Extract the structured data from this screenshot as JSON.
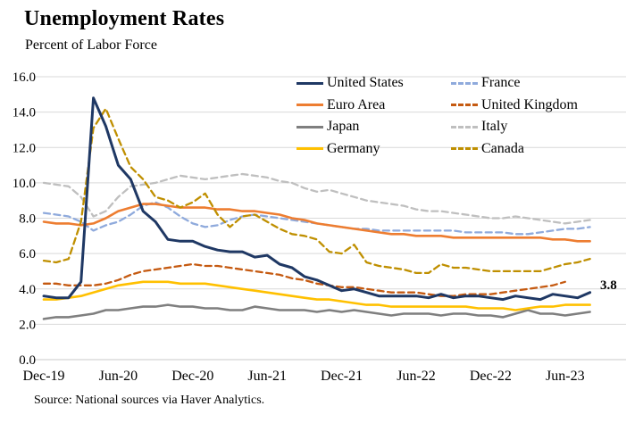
{
  "chart_data": {
    "type": "line",
    "title": "Unemployment Rates",
    "subtitle": "Percent of Labor Force",
    "source": "Source: National sources via Haver Analytics.",
    "ylim": [
      0,
      16
    ],
    "grid": "horizontal",
    "y_tick_labels": [
      "0.0",
      "2.0",
      "4.0",
      "6.0",
      "8.0",
      "10.0",
      "12.0",
      "14.0",
      "16.0"
    ],
    "x_months": [
      "Dec-19",
      "Jan-20",
      "Feb-20",
      "Mar-20",
      "Apr-20",
      "May-20",
      "Jun-20",
      "Jul-20",
      "Aug-20",
      "Sep-20",
      "Oct-20",
      "Nov-20",
      "Dec-20",
      "Jan-21",
      "Feb-21",
      "Mar-21",
      "Apr-21",
      "May-21",
      "Jun-21",
      "Jul-21",
      "Aug-21",
      "Sep-21",
      "Oct-21",
      "Nov-21",
      "Dec-21",
      "Jan-22",
      "Feb-22",
      "Mar-22",
      "Apr-22",
      "May-22",
      "Jun-22",
      "Jul-22",
      "Aug-22",
      "Sep-22",
      "Oct-22",
      "Nov-22",
      "Dec-22",
      "Jan-23",
      "Feb-23",
      "Mar-23",
      "Apr-23",
      "May-23",
      "Jun-23",
      "Jul-23",
      "Aug-23"
    ],
    "x_ticks": {
      "indices": [
        0,
        6,
        12,
        18,
        24,
        30,
        36,
        42
      ],
      "labels": [
        "Dec-19",
        "Jun-20",
        "Dec-20",
        "Jun-21",
        "Dec-21",
        "Jun-22",
        "Dec-22",
        "Jun-23"
      ]
    },
    "legend": {
      "position": "top-inside",
      "columns": [
        [
          "United States",
          "Euro Area",
          "Japan",
          "Germany"
        ],
        [
          "France",
          "United Kingdom",
          "Italy",
          "Canada"
        ]
      ]
    },
    "annotation": {
      "text": "3.8",
      "series": "United States",
      "point": "Aug-23"
    },
    "series": [
      {
        "name": "United States",
        "color": "#1F3864",
        "dash": false,
        "width": 3,
        "values": [
          3.6,
          3.5,
          3.5,
          4.4,
          14.8,
          13.2,
          11.0,
          10.2,
          8.4,
          7.8,
          6.8,
          6.7,
          6.7,
          6.4,
          6.2,
          6.1,
          6.1,
          5.8,
          5.9,
          5.4,
          5.2,
          4.7,
          4.5,
          4.2,
          3.9,
          4.0,
          3.8,
          3.6,
          3.6,
          3.6,
          3.6,
          3.5,
          3.7,
          3.5,
          3.6,
          3.6,
          3.5,
          3.4,
          3.6,
          3.5,
          3.4,
          3.7,
          3.6,
          3.5,
          3.8
        ]
      },
      {
        "name": "Euro Area",
        "color": "#ED7D31",
        "dash": false,
        "width": 2.6,
        "values": [
          7.8,
          7.7,
          7.7,
          7.6,
          7.7,
          8.0,
          8.4,
          8.6,
          8.8,
          8.8,
          8.7,
          8.6,
          8.6,
          8.6,
          8.5,
          8.5,
          8.4,
          8.4,
          8.3,
          8.2,
          8.0,
          7.9,
          7.7,
          7.6,
          7.5,
          7.4,
          7.3,
          7.2,
          7.1,
          7.1,
          7.0,
          7.0,
          7.0,
          6.9,
          6.9,
          6.9,
          6.9,
          6.9,
          6.9,
          6.9,
          6.9,
          6.8,
          6.8,
          6.7,
          6.7
        ]
      },
      {
        "name": "Japan",
        "color": "#7F7F7F",
        "dash": false,
        "width": 2.6,
        "values": [
          2.3,
          2.4,
          2.4,
          2.5,
          2.6,
          2.8,
          2.8,
          2.9,
          3.0,
          3.0,
          3.1,
          3.0,
          3.0,
          2.9,
          2.9,
          2.8,
          2.8,
          3.0,
          2.9,
          2.8,
          2.8,
          2.8,
          2.7,
          2.8,
          2.7,
          2.8,
          2.7,
          2.6,
          2.5,
          2.6,
          2.6,
          2.6,
          2.5,
          2.6,
          2.6,
          2.5,
          2.5,
          2.4,
          2.6,
          2.8,
          2.6,
          2.6,
          2.5,
          2.6,
          2.7
        ]
      },
      {
        "name": "Germany",
        "color": "#FFC000",
        "dash": false,
        "width": 2.6,
        "values": [
          3.4,
          3.4,
          3.5,
          3.6,
          3.8,
          4.0,
          4.2,
          4.3,
          4.4,
          4.4,
          4.4,
          4.3,
          4.3,
          4.3,
          4.2,
          4.1,
          4.0,
          3.9,
          3.8,
          3.7,
          3.6,
          3.5,
          3.4,
          3.4,
          3.3,
          3.2,
          3.1,
          3.1,
          3.0,
          3.0,
          3.0,
          3.0,
          3.0,
          3.0,
          3.0,
          2.9,
          2.9,
          2.9,
          2.8,
          2.9,
          3.0,
          3.0,
          3.1,
          3.1,
          3.1
        ]
      },
      {
        "name": "France",
        "color": "#8FAADC",
        "dash": true,
        "width": 2.3,
        "values": [
          8.3,
          8.2,
          8.1,
          7.8,
          7.3,
          7.6,
          7.8,
          8.2,
          8.7,
          8.9,
          8.6,
          8.1,
          7.7,
          7.5,
          7.6,
          7.9,
          8.1,
          8.2,
          8.1,
          8.0,
          7.9,
          7.8,
          7.7,
          7.6,
          7.5,
          7.4,
          7.4,
          7.3,
          7.3,
          7.3,
          7.3,
          7.3,
          7.3,
          7.3,
          7.2,
          7.2,
          7.2,
          7.2,
          7.1,
          7.1,
          7.2,
          7.3,
          7.4,
          7.4,
          7.5
        ]
      },
      {
        "name": "United Kingdom",
        "color": "#C55A11",
        "dash": true,
        "width": 2.3,
        "values": [
          4.3,
          4.3,
          4.2,
          4.2,
          4.2,
          4.3,
          4.5,
          4.8,
          5.0,
          5.1,
          5.2,
          5.3,
          5.4,
          5.3,
          5.3,
          5.2,
          5.1,
          5.0,
          4.9,
          4.8,
          4.6,
          4.5,
          4.3,
          4.2,
          4.1,
          4.1,
          4.0,
          3.9,
          3.8,
          3.8,
          3.8,
          3.7,
          3.6,
          3.6,
          3.7,
          3.7,
          3.7,
          3.8,
          3.9,
          4.0,
          4.1,
          4.2,
          4.4,
          null,
          null
        ]
      },
      {
        "name": "Italy",
        "color": "#BFBFBF",
        "dash": true,
        "width": 2.3,
        "values": [
          10.0,
          9.9,
          9.8,
          9.2,
          8.1,
          8.4,
          9.2,
          9.8,
          9.9,
          10.0,
          10.2,
          10.4,
          10.3,
          10.2,
          10.3,
          10.4,
          10.5,
          10.4,
          10.3,
          10.1,
          10.0,
          9.7,
          9.5,
          9.6,
          9.4,
          9.2,
          9.0,
          8.9,
          8.8,
          8.7,
          8.5,
          8.4,
          8.4,
          8.3,
          8.2,
          8.1,
          8.0,
          8.0,
          8.1,
          8.0,
          7.9,
          7.8,
          7.7,
          7.8,
          7.9
        ]
      },
      {
        "name": "Canada",
        "color": "#BF8F00",
        "dash": true,
        "width": 2.3,
        "values": [
          5.6,
          5.5,
          5.7,
          7.8,
          13.1,
          14.2,
          12.5,
          10.9,
          10.2,
          9.2,
          9.0,
          8.6,
          8.9,
          9.4,
          8.2,
          7.5,
          8.1,
          8.2,
          7.8,
          7.4,
          7.1,
          7.0,
          6.8,
          6.1,
          6.0,
          6.5,
          5.5,
          5.3,
          5.2,
          5.1,
          4.9,
          4.9,
          5.4,
          5.2,
          5.2,
          5.1,
          5.0,
          5.0,
          5.0,
          5.0,
          5.0,
          5.2,
          5.4,
          5.5,
          5.7
        ]
      }
    ],
    "colors": {
      "gridline": "#D9D9D9",
      "axis_line": "#C9C9C9",
      "text": "#000000"
    }
  }
}
